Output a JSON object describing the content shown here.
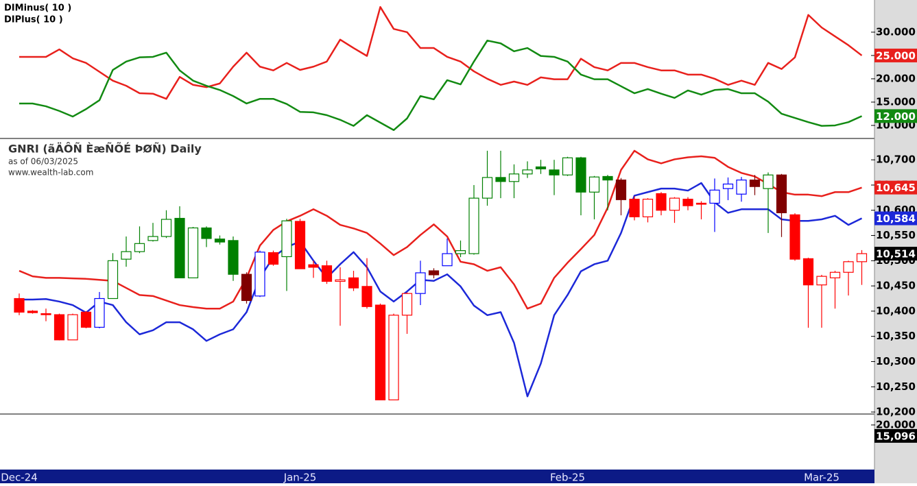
{
  "chart_data": [
    {
      "type": "line",
      "series": [
        {
          "name": "DIMinus( 10 )",
          "color": "#e8201c",
          "last_label": "25.000",
          "values": [
            24.7,
            24.7,
            24.7,
            26.3,
            24.4,
            23.4,
            21.5,
            19.6,
            18.5,
            16.9,
            16.8,
            15.7,
            20.4,
            18.7,
            18.2,
            19.0,
            22.6,
            25.6,
            22.6,
            21.8,
            23.4,
            21.9,
            22.6,
            23.7,
            28.4,
            26.6,
            24.9,
            35.4,
            30.7,
            30.0,
            26.6,
            26.6,
            24.7,
            23.7,
            21.6,
            20.0,
            18.7,
            19.4,
            18.7,
            20.3,
            19.9,
            19.9,
            24.3,
            22.5,
            21.8,
            23.4,
            23.4,
            22.5,
            21.8,
            21.8,
            20.9,
            20.9,
            20.0,
            18.7,
            19.6,
            18.7,
            23.4,
            22.1,
            24.6,
            33.7,
            31.0,
            29.1,
            27.2,
            25
          ]
        },
        {
          "name": "DIPlus( 10 )",
          "color": "#128a12",
          "last_label": "12.000",
          "values": [
            14.7,
            14.7,
            14.1,
            13.1,
            11.9,
            13.5,
            15.4,
            21.9,
            23.7,
            24.6,
            24.7,
            25.6,
            21.8,
            19.6,
            18.5,
            17.6,
            16.3,
            14.7,
            15.7,
            15.7,
            14.6,
            12.9,
            12.8,
            12.2,
            11.2,
            9.9,
            12.2,
            10.6,
            9.0,
            11.5,
            16.3,
            15.6,
            19.7,
            18.8,
            23.7,
            28.2,
            27.6,
            25.9,
            26.6,
            24.9,
            24.7,
            23.7,
            20.9,
            19.9,
            19.9,
            18.4,
            16.9,
            17.8,
            16.8,
            15.9,
            17.5,
            16.6,
            17.6,
            17.8,
            16.9,
            16.9,
            15.1,
            12.5,
            11.6,
            10.7,
            9.9,
            10.0,
            10.7,
            12
          ]
        }
      ],
      "ylim": [
        7.2,
        36.9
      ],
      "yticks": [
        {
          "value": 10,
          "label": "10.000"
        },
        {
          "value": 15,
          "label": "15.000"
        },
        {
          "value": 20,
          "label": "20.000"
        },
        {
          "value": 25,
          "label": "25.000"
        },
        {
          "value": 30,
          "label": "30.000"
        }
      ]
    },
    {
      "type": "candlestick",
      "title": "GNRI (ãÄÔÑ ÈæÑÕÉ ÞØÑ) Daily",
      "subtitle": "as of 06/03/2025",
      "source": "www.wealth-lab.com",
      "categories": [
        "Dec-24",
        null,
        null,
        null,
        null,
        null,
        null,
        null,
        null,
        null,
        null,
        null,
        null,
        null,
        null,
        null,
        null,
        null,
        null,
        null,
        null,
        "Jan-25",
        null,
        null,
        null,
        null,
        null,
        null,
        null,
        null,
        null,
        null,
        null,
        null,
        null,
        null,
        null,
        null,
        null,
        null,
        null,
        "Feb-25",
        null,
        null,
        null,
        null,
        null,
        null,
        null,
        null,
        null,
        null,
        null,
        null,
        null,
        null,
        null,
        null,
        null,
        null,
        "Mar-25",
        null,
        null,
        null
      ],
      "open": [
        10425,
        10400,
        10395,
        10393,
        10343,
        10398,
        10368,
        10425,
        10503,
        10518,
        10540,
        10548,
        10584,
        10466,
        10565,
        10543,
        10540,
        10473,
        10430,
        10516,
        10508,
        10578,
        10492,
        10490,
        10459,
        10466,
        10449,
        10412,
        10224,
        10392,
        10435,
        10480,
        10490,
        10514,
        10514,
        10624,
        10665,
        10657,
        10672,
        10686,
        10680,
        10670,
        10704,
        10636,
        10667,
        10660,
        10622,
        10587,
        10633,
        10600,
        10622,
        10614,
        10614,
        10643,
        10632,
        10660,
        10643,
        10670,
        10591,
        10504,
        10452,
        10466,
        10477,
        10498
      ],
      "high": [
        10435,
        10402,
        10405,
        10395,
        10395,
        10400,
        10438,
        10515,
        10548,
        10568,
        10575,
        10600,
        10608,
        10567,
        10568,
        10550,
        10548,
        10477,
        10520,
        10520,
        10583,
        10583,
        10500,
        10500,
        10487,
        10480,
        10505,
        10415,
        10395,
        10437,
        10500,
        10485,
        10544,
        10540,
        10650,
        10718,
        10718,
        10691,
        10697,
        10700,
        10700,
        10706,
        10706,
        10668,
        10670,
        10664,
        10628,
        10624,
        10636,
        10626,
        10626,
        10618,
        10663,
        10665,
        10666,
        10670,
        10675,
        10672,
        10594,
        10506,
        10472,
        10480,
        10500,
        10521
      ],
      "low": [
        10392,
        10395,
        10380,
        10342,
        10343,
        10366,
        10366,
        10425,
        10488,
        10515,
        10538,
        10545,
        10466,
        10466,
        10527,
        10532,
        10460,
        10415,
        10428,
        10490,
        10440,
        10484,
        10466,
        10454,
        10371,
        10440,
        10405,
        10224,
        10224,
        10355,
        10412,
        10465,
        10490,
        10507,
        10512,
        10609,
        10624,
        10624,
        10664,
        10672,
        10630,
        10668,
        10590,
        10582,
        10600,
        10590,
        10580,
        10576,
        10590,
        10575,
        10600,
        10582,
        10557,
        10620,
        10617,
        10630,
        10555,
        10547,
        10500,
        10367,
        10367,
        10405,
        10431,
        10452
      ],
      "close": [
        10398,
        10397,
        10394,
        10343,
        10393,
        10368,
        10425,
        10500,
        10518,
        10534,
        10548,
        10582,
        10466,
        10565,
        10544,
        10537,
        10473,
        10421,
        10517,
        10493,
        10579,
        10484,
        10487,
        10459,
        10462,
        10446,
        10409,
        10224,
        10392,
        10435,
        10476,
        10472,
        10514,
        10520,
        10624,
        10665,
        10657,
        10672,
        10680,
        10682,
        10670,
        10704,
        10636,
        10666,
        10660,
        10621,
        10587,
        10622,
        10600,
        10624,
        10609,
        10613,
        10640,
        10652,
        10660,
        10647,
        10670,
        10595,
        10503,
        10452,
        10469,
        10477,
        10498,
        10514
      ],
      "candle_colors": [
        "#ff0000",
        "#ff0000",
        "#ff0000",
        "#ff0000",
        "#ff0000",
        "#ff0000",
        "#0000ff",
        "#008000",
        "#008000",
        "#008000",
        "#008000",
        "#008000",
        "#008000",
        "#008000",
        "#008000",
        "#008000",
        "#008000",
        "#800000",
        "#0000ff",
        "#ff0000",
        "#008000",
        "#ff0000",
        "#ff0000",
        "#ff0000",
        "#ff0000",
        "#ff0000",
        "#ff0000",
        "#ff0000",
        "#ff0000",
        "#ff0000",
        "#0000ff",
        "#800000",
        "#0000ff",
        "#008000",
        "#008000",
        "#008000",
        "#008000",
        "#008000",
        "#008000",
        "#008000",
        "#008000",
        "#008000",
        "#008000",
        "#008000",
        "#008000",
        "#800000",
        "#ff0000",
        "#ff0000",
        "#ff0000",
        "#ff0000",
        "#ff0000",
        "#ff0000",
        "#0000ff",
        "#0000ff",
        "#0000ff",
        "#800000",
        "#008000",
        "#800000",
        "#ff0000",
        "#ff0000",
        "#ff0000",
        "#ff0000",
        "#ff0000",
        "#ff0000"
      ],
      "last_close_label": "10,514",
      "lines": [
        {
          "color": "#e8201c",
          "last_label": "10,645",
          "values": [
            10480,
            10469,
            10466,
            10466,
            10465,
            10464,
            10462,
            10460,
            10446,
            10432,
            10430,
            10421,
            10412,
            10408,
            10405,
            10405,
            10419,
            10466,
            10530,
            10561,
            10578,
            10589,
            10602,
            10589,
            10571,
            10564,
            10555,
            10534,
            10511,
            10527,
            10551,
            10572,
            10548,
            10498,
            10493,
            10480,
            10487,
            10453,
            10405,
            10415,
            10466,
            10496,
            10523,
            10551,
            10605,
            10680,
            10718,
            10701,
            10693,
            10701,
            10705,
            10707,
            10704,
            10686,
            10674,
            10667,
            10652,
            10636,
            10631,
            10631,
            10628,
            10636,
            10636,
            10645
          ]
        },
        {
          "color": "#1c28d8",
          "last_label": "10,584",
          "values": [
            10423,
            10423,
            10424,
            10419,
            10412,
            10397,
            10419,
            10412,
            10378,
            10354,
            10362,
            10378,
            10378,
            10364,
            10341,
            10354,
            10364,
            10398,
            10466,
            10507,
            10527,
            10538,
            10500,
            10466,
            10493,
            10517,
            10487,
            10439,
            10419,
            10439,
            10462,
            10460,
            10473,
            10449,
            10411,
            10392,
            10398,
            10337,
            10231,
            10296,
            10392,
            10432,
            10479,
            10493,
            10500,
            10555,
            10629,
            10636,
            10643,
            10643,
            10639,
            10654,
            10616,
            10595,
            10602,
            10602,
            10602,
            10582,
            10579,
            10579,
            10582,
            10589,
            10571,
            10584
          ]
        }
      ],
      "ylim": [
        10196,
        10741
      ],
      "yticks": [
        {
          "value": 10200,
          "label": "10,200"
        },
        {
          "value": 10250,
          "label": "10,250"
        },
        {
          "value": 10300,
          "label": "10,300"
        },
        {
          "value": 10350,
          "label": "10,350"
        },
        {
          "value": 10400,
          "label": "10,400"
        },
        {
          "value": 10450,
          "label": "10,450"
        },
        {
          "value": 10500,
          "label": "10,500"
        },
        {
          "value": 10550,
          "label": "10,550"
        },
        {
          "value": 10600,
          "label": "10,600"
        },
        {
          "value": 10650,
          "label": "10,650"
        },
        {
          "value": 10700,
          "label": "10,700"
        }
      ]
    },
    {
      "type": "volume",
      "ylim": [
        0,
        24900
      ],
      "yticks": [
        {
          "value": 20000,
          "label": "20.000"
        }
      ],
      "last": 15096,
      "last_label": "15,096"
    }
  ]
}
